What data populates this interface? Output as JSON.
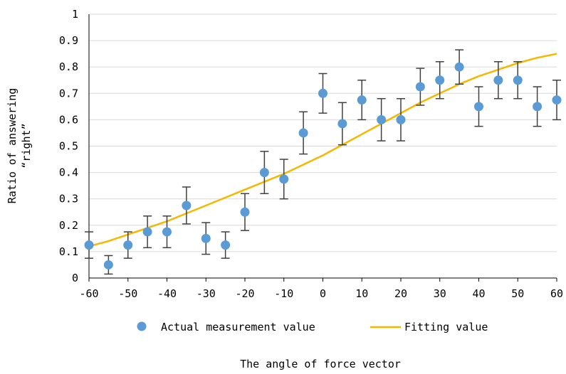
{
  "chart_data": {
    "type": "scatter",
    "title": "",
    "xlabel": "The angle of force vector",
    "ylabel_lines": [
      "Ratio of answering",
      "“right”"
    ],
    "xlim": [
      -60,
      60
    ],
    "ylim": [
      0,
      1
    ],
    "x_ticks": [
      "-60",
      "-50",
      "-40",
      "-30",
      "-20",
      "-10",
      "0",
      "10",
      "20",
      "30",
      "40",
      "50",
      "60"
    ],
    "y_ticks": [
      "0",
      "0.1",
      "0.2",
      "0.3",
      "0.4",
      "0.5",
      "0.6",
      "0.7",
      "0.8",
      "0.9",
      "1"
    ],
    "grid": "horizontal",
    "legend_position": "bottom",
    "series": [
      {
        "name": "Actual measurement value",
        "kind": "scatter",
        "color": "#5b9bd5",
        "points": [
          {
            "x": -60,
            "y": 0.125,
            "err_low": 0.075,
            "err_high": 0.175
          },
          {
            "x": -55,
            "y": 0.05,
            "err_low": 0.015,
            "err_high": 0.085
          },
          {
            "x": -50,
            "y": 0.125,
            "err_low": 0.075,
            "err_high": 0.175
          },
          {
            "x": -45,
            "y": 0.175,
            "err_low": 0.115,
            "err_high": 0.235
          },
          {
            "x": -40,
            "y": 0.175,
            "err_low": 0.115,
            "err_high": 0.235
          },
          {
            "x": -35,
            "y": 0.275,
            "err_low": 0.205,
            "err_high": 0.345
          },
          {
            "x": -30,
            "y": 0.15,
            "err_low": 0.09,
            "err_high": 0.21
          },
          {
            "x": -25,
            "y": 0.125,
            "err_low": 0.075,
            "err_high": 0.175
          },
          {
            "x": -20,
            "y": 0.25,
            "err_low": 0.18,
            "err_high": 0.32
          },
          {
            "x": -15,
            "y": 0.4,
            "err_low": 0.32,
            "err_high": 0.48
          },
          {
            "x": -10,
            "y": 0.375,
            "err_low": 0.3,
            "err_high": 0.45
          },
          {
            "x": -5,
            "y": 0.55,
            "err_low": 0.47,
            "err_high": 0.63
          },
          {
            "x": 0,
            "y": 0.7,
            "err_low": 0.625,
            "err_high": 0.775
          },
          {
            "x": 5,
            "y": 0.585,
            "err_low": 0.505,
            "err_high": 0.665
          },
          {
            "x": 10,
            "y": 0.675,
            "err_low": 0.6,
            "err_high": 0.75
          },
          {
            "x": 15,
            "y": 0.6,
            "err_low": 0.52,
            "err_high": 0.68
          },
          {
            "x": 20,
            "y": 0.6,
            "err_low": 0.52,
            "err_high": 0.68
          },
          {
            "x": 25,
            "y": 0.725,
            "err_low": 0.655,
            "err_high": 0.795
          },
          {
            "x": 30,
            "y": 0.75,
            "err_low": 0.68,
            "err_high": 0.82
          },
          {
            "x": 35,
            "y": 0.8,
            "err_low": 0.735,
            "err_high": 0.865
          },
          {
            "x": 40,
            "y": 0.65,
            "err_low": 0.575,
            "err_high": 0.725
          },
          {
            "x": 45,
            "y": 0.75,
            "err_low": 0.68,
            "err_high": 0.82
          },
          {
            "x": 50,
            "y": 0.75,
            "err_low": 0.68,
            "err_high": 0.82
          },
          {
            "x": 55,
            "y": 0.65,
            "err_low": 0.575,
            "err_high": 0.725
          },
          {
            "x": 60,
            "y": 0.675,
            "err_low": 0.6,
            "err_high": 0.75
          }
        ]
      },
      {
        "name": "Fitting value",
        "kind": "line",
        "color": "#f5b800",
        "points": [
          {
            "x": -60,
            "y": 0.12
          },
          {
            "x": -55,
            "y": 0.14
          },
          {
            "x": -50,
            "y": 0.165
          },
          {
            "x": -45,
            "y": 0.19
          },
          {
            "x": -40,
            "y": 0.215
          },
          {
            "x": -35,
            "y": 0.245
          },
          {
            "x": -30,
            "y": 0.275
          },
          {
            "x": -25,
            "y": 0.305
          },
          {
            "x": -20,
            "y": 0.335
          },
          {
            "x": -15,
            "y": 0.365
          },
          {
            "x": -10,
            "y": 0.395
          },
          {
            "x": -5,
            "y": 0.43
          },
          {
            "x": 0,
            "y": 0.465
          },
          {
            "x": 5,
            "y": 0.505
          },
          {
            "x": 10,
            "y": 0.545
          },
          {
            "x": 15,
            "y": 0.585
          },
          {
            "x": 20,
            "y": 0.625
          },
          {
            "x": 25,
            "y": 0.665
          },
          {
            "x": 30,
            "y": 0.7
          },
          {
            "x": 35,
            "y": 0.735
          },
          {
            "x": 40,
            "y": 0.765
          },
          {
            "x": 45,
            "y": 0.79
          },
          {
            "x": 50,
            "y": 0.815
          },
          {
            "x": 55,
            "y": 0.835
          },
          {
            "x": 60,
            "y": 0.85
          }
        ]
      }
    ]
  }
}
